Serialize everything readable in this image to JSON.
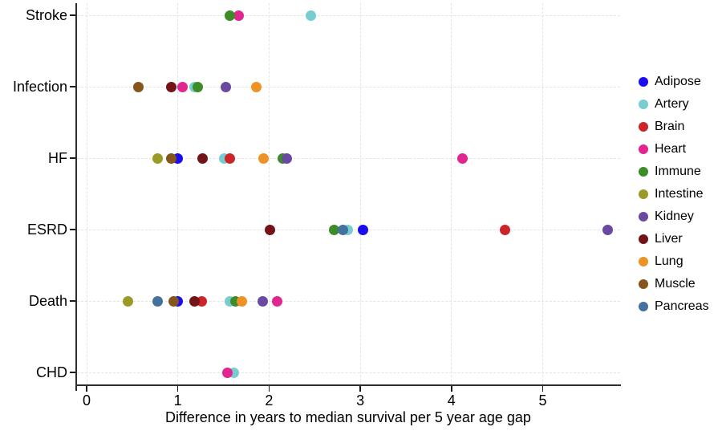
{
  "chart_data": {
    "type": "scatter",
    "title": "",
    "xlabel": "Difference in years to median survival per 5 year age gap",
    "ylabel": "",
    "categories": [
      "Stroke",
      "Infection",
      "HF",
      "ESRD",
      "Death",
      "CHD"
    ],
    "x_ticks": [
      0,
      1,
      2,
      3,
      4,
      5
    ],
    "xlim": [
      0,
      5.85
    ],
    "grid": "dashed",
    "legend_position": "right",
    "series": [
      {
        "name": "Adipose",
        "color": "#1a0dee",
        "values": [
          {
            "category": "HF",
            "x": 1.0
          },
          {
            "category": "ESRD",
            "x": 3.03
          },
          {
            "category": "Death",
            "x": 1.0
          }
        ]
      },
      {
        "name": "Artery",
        "color": "#79cdd2",
        "values": [
          {
            "category": "Stroke",
            "x": 2.46
          },
          {
            "category": "Infection",
            "x": 1.18
          },
          {
            "category": "HF",
            "x": 1.51
          },
          {
            "category": "ESRD",
            "x": 2.86
          },
          {
            "category": "Death",
            "x": 1.57
          },
          {
            "category": "CHD",
            "x": 1.61
          }
        ]
      },
      {
        "name": "Brain",
        "color": "#cb2529",
        "values": [
          {
            "category": "HF",
            "x": 1.57
          },
          {
            "category": "ESRD",
            "x": 4.59
          },
          {
            "category": "Death",
            "x": 1.26
          }
        ]
      },
      {
        "name": "Heart",
        "color": "#e2268f",
        "values": [
          {
            "category": "Stroke",
            "x": 1.67
          },
          {
            "category": "Infection",
            "x": 1.05
          },
          {
            "category": "HF",
            "x": 4.12
          },
          {
            "category": "Death",
            "x": 2.09
          },
          {
            "category": "CHD",
            "x": 1.54
          }
        ]
      },
      {
        "name": "Immune",
        "color": "#3e8c28",
        "values": [
          {
            "category": "Stroke",
            "x": 1.57
          },
          {
            "category": "Infection",
            "x": 1.22
          },
          {
            "category": "HF",
            "x": 2.15
          },
          {
            "category": "ESRD",
            "x": 2.71
          },
          {
            "category": "Death",
            "x": 1.63
          }
        ]
      },
      {
        "name": "Intestine",
        "color": "#9a9b26",
        "values": [
          {
            "category": "HF",
            "x": 0.78
          },
          {
            "category": "Death",
            "x": 0.45
          }
        ]
      },
      {
        "name": "Kidney",
        "color": "#6a4aa0",
        "values": [
          {
            "category": "Infection",
            "x": 1.53
          },
          {
            "category": "HF",
            "x": 2.19
          },
          {
            "category": "ESRD",
            "x": 5.71
          },
          {
            "category": "Death",
            "x": 1.93
          }
        ]
      },
      {
        "name": "Liver",
        "color": "#741418",
        "values": [
          {
            "category": "Infection",
            "x": 0.93
          },
          {
            "category": "HF",
            "x": 1.27
          },
          {
            "category": "ESRD",
            "x": 2.01
          },
          {
            "category": "Death",
            "x": 1.18
          }
        ]
      },
      {
        "name": "Lung",
        "color": "#ee9226",
        "values": [
          {
            "category": "Infection",
            "x": 1.86
          },
          {
            "category": "HF",
            "x": 1.94
          },
          {
            "category": "Death",
            "x": 1.7
          }
        ]
      },
      {
        "name": "Muscle",
        "color": "#86551b",
        "values": [
          {
            "category": "Infection",
            "x": 0.57
          },
          {
            "category": "HF",
            "x": 0.93
          },
          {
            "category": "Death",
            "x": 0.95
          }
        ]
      },
      {
        "name": "Pancreas",
        "color": "#44719e",
        "values": [
          {
            "category": "ESRD",
            "x": 2.81
          },
          {
            "category": "Death",
            "x": 0.78
          }
        ]
      }
    ]
  }
}
